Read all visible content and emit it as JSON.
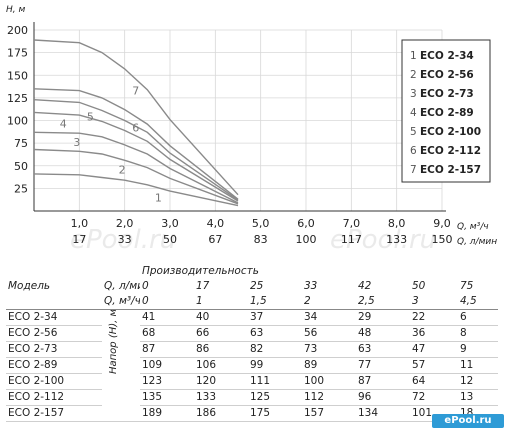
{
  "chart_data": {
    "type": "line",
    "ylabel": "H, м",
    "ylim": [
      0,
      200
    ],
    "yticks": [
      25,
      50,
      75,
      100,
      125,
      150,
      175,
      200
    ],
    "x": [
      0,
      1.0,
      2.0,
      3.0,
      4.0,
      4.5
    ],
    "xlim": [
      0,
      9.0
    ],
    "xlabel_primary": "Q, м³/ч",
    "xlabel_secondary": "Q, л/мин",
    "xticks_primary": [
      "1,0",
      "2,0",
      "3,0",
      "4,0",
      "5,0",
      "6,0",
      "7,0",
      "8,0",
      "9,0"
    ],
    "xticks_secondary": [
      "17",
      "33",
      "50",
      "67",
      "83",
      "100",
      "117",
      "133",
      "150"
    ],
    "series": [
      {
        "name": "ECO 2-34",
        "label": "1",
        "x": [
          0,
          1.0,
          1.5,
          2.0,
          2.5,
          3.0,
          4.5
        ],
        "values": [
          41,
          40,
          37,
          34,
          29,
          22,
          6
        ]
      },
      {
        "name": "ECO 2-56",
        "label": "2",
        "x": [
          0,
          1.0,
          1.5,
          2.0,
          2.5,
          3.0,
          4.5
        ],
        "values": [
          68,
          66,
          63,
          56,
          48,
          36,
          8
        ]
      },
      {
        "name": "ECO 2-73",
        "label": "3",
        "x": [
          0,
          1.0,
          1.5,
          2.0,
          2.5,
          3.0,
          4.5
        ],
        "values": [
          87,
          86,
          82,
          73,
          63,
          47,
          9
        ]
      },
      {
        "name": "ECO 2-89",
        "label": "4",
        "x": [
          0,
          1.0,
          1.5,
          2.0,
          2.5,
          3.0,
          4.5
        ],
        "values": [
          109,
          106,
          99,
          89,
          77,
          57,
          11
        ]
      },
      {
        "name": "ECO 2-100",
        "label": "5",
        "x": [
          0,
          1.0,
          1.5,
          2.0,
          2.5,
          3.0,
          4.5
        ],
        "values": [
          123,
          120,
          111,
          100,
          87,
          64,
          12
        ]
      },
      {
        "name": "ECO 2-112",
        "label": "6",
        "x": [
          0,
          1.0,
          1.5,
          2.0,
          2.5,
          3.0,
          4.5
        ],
        "values": [
          135,
          133,
          125,
          112,
          96,
          72,
          13
        ]
      },
      {
        "name": "ECO 2-157",
        "label": "7",
        "x": [
          0,
          1.0,
          1.5,
          2.0,
          2.5,
          3.0,
          4.5
        ],
        "values": [
          189,
          186,
          175,
          157,
          134,
          101,
          18
        ]
      }
    ],
    "legend": [
      "1 ECO 2-34",
      "2 ECO 2-56",
      "3 ECO 2-73",
      "4 ECO 2-89",
      "5 ECO 2-100",
      "6 ECO 2-112",
      "7 ECO 2-157"
    ],
    "legend_placement": "right",
    "watermark": "ePool.ru"
  },
  "table": {
    "model_header": "Модель",
    "perf_header": "Производительность",
    "flow_lmin_label": "Q, л/мин",
    "flow_m3h_label": "Q, м³/ч",
    "head_label": "Напор (H), м",
    "flow_lmin": [
      "0",
      "17",
      "25",
      "33",
      "42",
      "50",
      "75"
    ],
    "flow_m3h": [
      "0",
      "1",
      "1,5",
      "2",
      "2,5",
      "3",
      "4,5"
    ],
    "rows": [
      {
        "model": "ECO 2-34",
        "values": [
          "41",
          "40",
          "37",
          "34",
          "29",
          "22",
          "6"
        ]
      },
      {
        "model": "ECO 2-56",
        "values": [
          "68",
          "66",
          "63",
          "56",
          "48",
          "36",
          "8"
        ]
      },
      {
        "model": "ECO 2-73",
        "values": [
          "87",
          "86",
          "82",
          "73",
          "63",
          "47",
          "9"
        ]
      },
      {
        "model": "ECO 2-89",
        "values": [
          "109",
          "106",
          "99",
          "89",
          "77",
          "57",
          "11"
        ]
      },
      {
        "model": "ECO 2-100",
        "values": [
          "123",
          "120",
          "111",
          "100",
          "87",
          "64",
          "12"
        ]
      },
      {
        "model": "ECO 2-112",
        "values": [
          "135",
          "133",
          "125",
          "112",
          "96",
          "72",
          "13"
        ]
      },
      {
        "model": "ECO 2-157",
        "values": [
          "189",
          "186",
          "175",
          "157",
          "134",
          "101",
          "18"
        ]
      }
    ],
    "brand": "ePool.ru"
  }
}
